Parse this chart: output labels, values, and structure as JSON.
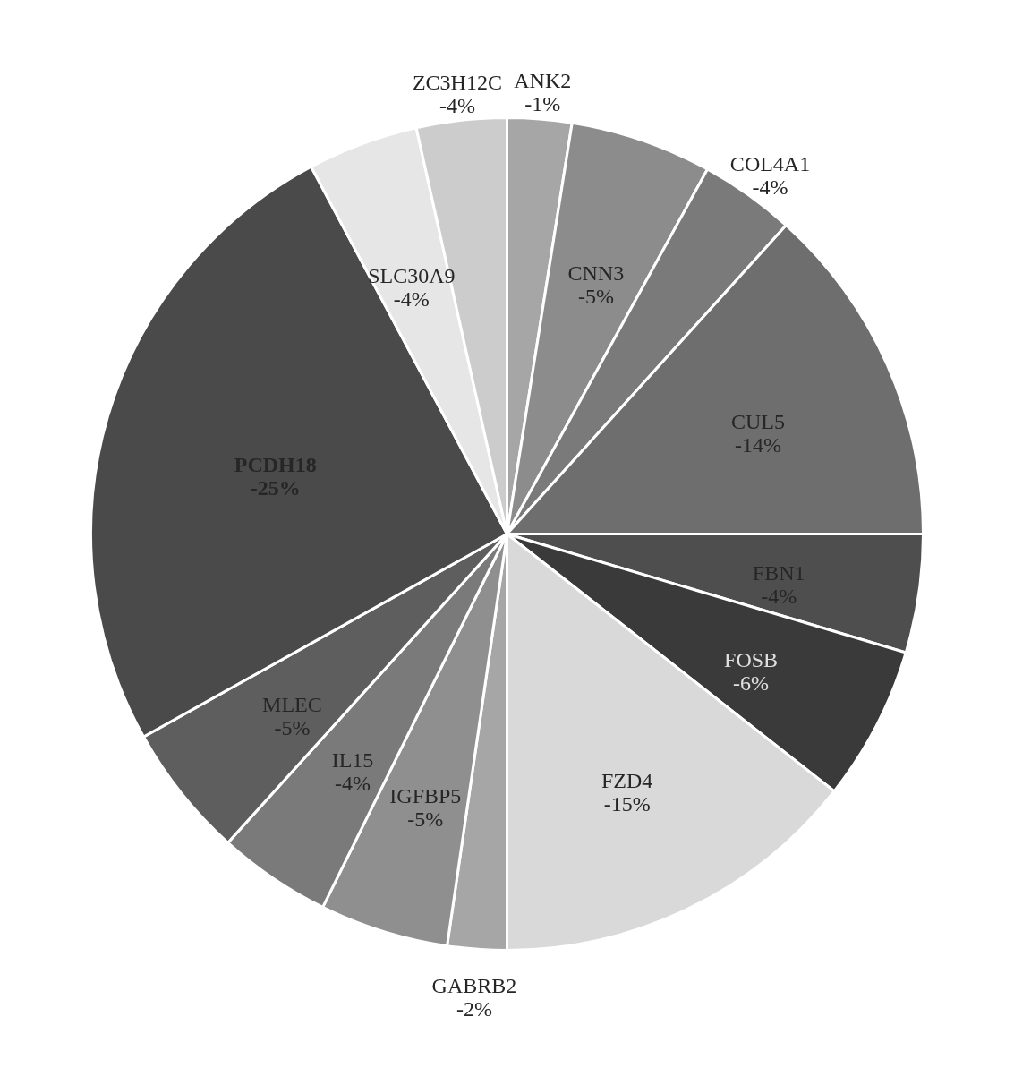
{
  "chart_data": {
    "type": "pie",
    "categories": [
      "ANK2",
      "CNN3",
      "COL4A1",
      "CUL5",
      "FBN1",
      "FOSB",
      "FZD4",
      "GABRB2",
      "IGFBP5",
      "IL15",
      "MLEC",
      "PCDH18",
      "SLC30A9",
      "ZC3H12C"
    ],
    "values": [
      2.5,
      5.5,
      3.7,
      13.3,
      4.6,
      6,
      14.4,
      2.3,
      5,
      4.4,
      5.2,
      25.3,
      4.3,
      3.5
    ],
    "annotations": [
      "-1%",
      "-5%",
      "-4%",
      "-14%",
      "-4%",
      "-6%",
      "-15%",
      "-2%",
      "-5%",
      "-4%",
      "-5%",
      "-25%",
      "-4%",
      "-4%"
    ],
    "colors": [
      "#a6a6a6",
      "#8c8c8c",
      "#7a7a7a",
      "#6e6e6e",
      "#4e4e4e",
      "#3a3a3a",
      "#d9d9d9",
      "#a6a6a6",
      "#8f8f8f",
      "#7a7a7a",
      "#5e5e5e",
      "#4a4a4a",
      "#e6e6e6",
      "#cccccc"
    ]
  }
}
